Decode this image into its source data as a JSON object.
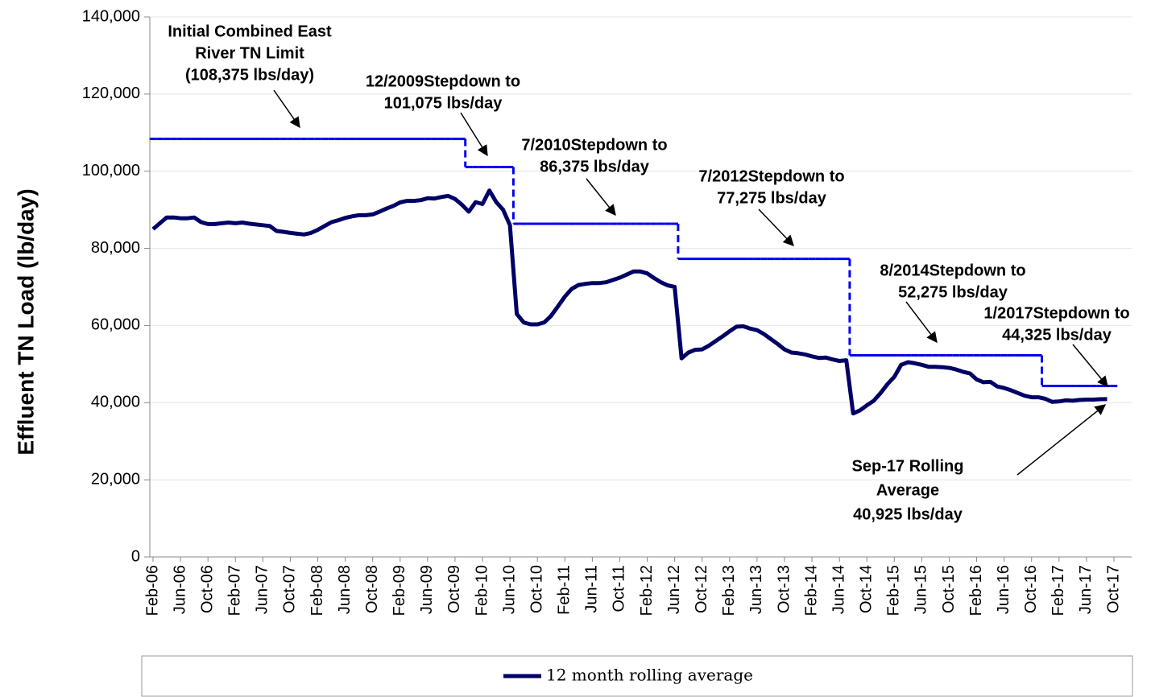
{
  "chart_data": {
    "type": "line",
    "y_label": "Effluent TN Load (lb/day)",
    "categories": [
      "Feb-06",
      null,
      null,
      null,
      "Jun-06",
      null,
      null,
      null,
      "Oct-06",
      null,
      null,
      null,
      "Feb-07",
      null,
      null,
      null,
      "Jun-07",
      null,
      null,
      null,
      "Oct-07",
      null,
      null,
      null,
      "Feb-08",
      null,
      null,
      null,
      "Jun-08",
      null,
      null,
      null,
      "Oct-08",
      null,
      null,
      null,
      "Feb-09",
      null,
      null,
      null,
      "Jun-09",
      null,
      null,
      null,
      "Oct-09",
      null,
      null,
      null,
      "Feb-10",
      null,
      null,
      null,
      "Jun-10",
      null,
      null,
      null,
      "Oct-10",
      null,
      null,
      null,
      "Feb-11",
      null,
      null,
      null,
      "Jun-11",
      null,
      null,
      null,
      "Oct-11",
      null,
      null,
      null,
      "Feb-12",
      null,
      null,
      null,
      "Jun-12",
      null,
      null,
      null,
      "Oct-12",
      null,
      null,
      null,
      "Feb-13",
      null,
      null,
      null,
      "Jun-13",
      null,
      null,
      null,
      "Oct-13",
      null,
      null,
      null,
      "Feb-14",
      null,
      null,
      null,
      "Jun-14",
      null,
      null,
      null,
      "Oct-14",
      null,
      null,
      null,
      "Feb-15",
      null,
      null,
      null,
      "Jun-15",
      null,
      null,
      null,
      "Oct-15",
      null,
      null,
      null,
      "Feb-16",
      null,
      null,
      null,
      "Jun-16",
      null,
      null,
      null,
      "Oct-16",
      null,
      null,
      null,
      "Feb-17",
      null,
      null,
      null,
      "Jun-17",
      null,
      null,
      null,
      "Oct-17"
    ],
    "series": [
      {
        "name": "12 month rolling average",
        "color": "#000066",
        "values": [
          85000,
          86500,
          88000,
          88000,
          87800,
          87800,
          88000,
          86800,
          86300,
          86300,
          86500,
          86700,
          86500,
          86700,
          86400,
          86200,
          86000,
          85800,
          84500,
          84300,
          84000,
          83800,
          83600,
          84000,
          84800,
          85800,
          86800,
          87300,
          87900,
          88300,
          88600,
          88600,
          88800,
          89500,
          90300,
          91000,
          91900,
          92300,
          92300,
          92500,
          93000,
          92900,
          93300,
          93600,
          92800,
          91300,
          89500,
          92000,
          91500,
          95000,
          92000,
          90000,
          86000,
          63000,
          60800,
          60300,
          60300,
          60800,
          62500,
          65000,
          67500,
          69500,
          70500,
          70800,
          71000,
          71000,
          71200,
          71800,
          72400,
          73200,
          74000,
          74000,
          73500,
          72300,
          71200,
          70400,
          70000,
          51500,
          53000,
          53700,
          53800,
          54800,
          56000,
          57200,
          58500,
          59700,
          59800,
          59200,
          58800,
          57800,
          56500,
          55200,
          53800,
          53000,
          52800,
          52500,
          52000,
          51600,
          51700,
          51200,
          50800,
          51000,
          37200,
          38000,
          39300,
          40500,
          42500,
          44800,
          46700,
          49800,
          50500,
          50200,
          49800,
          49300,
          49300,
          49200,
          49000,
          48600,
          48000,
          47600,
          46000,
          45300,
          45400,
          44200,
          43800,
          43200,
          42500,
          41800,
          41400,
          41400,
          41000,
          40200,
          40300,
          40600,
          40500,
          40700,
          40800,
          40800,
          40900,
          40925,
          null
        ]
      },
      {
        "color": "#0000ee",
        "style": "dashed-step",
        "values": [
          108375,
          108375,
          108375,
          108375,
          108375,
          108375,
          108375,
          108375,
          108375,
          108375,
          108375,
          108375,
          108375,
          108375,
          108375,
          108375,
          108375,
          108375,
          108375,
          108375,
          108375,
          108375,
          108375,
          108375,
          108375,
          108375,
          108375,
          108375,
          108375,
          108375,
          108375,
          108375,
          108375,
          108375,
          108375,
          108375,
          108375,
          108375,
          108375,
          108375,
          108375,
          108375,
          108375,
          108375,
          108375,
          108375,
          101075,
          101075,
          101075,
          101075,
          101075,
          101075,
          101075,
          86375,
          86375,
          86375,
          86375,
          86375,
          86375,
          86375,
          86375,
          86375,
          86375,
          86375,
          86375,
          86375,
          86375,
          86375,
          86375,
          86375,
          86375,
          86375,
          86375,
          86375,
          86375,
          86375,
          86375,
          77275,
          77275,
          77275,
          77275,
          77275,
          77275,
          77275,
          77275,
          77275,
          77275,
          77275,
          77275,
          77275,
          77275,
          77275,
          77275,
          77275,
          77275,
          77275,
          77275,
          77275,
          77275,
          77275,
          77275,
          77275,
          52275,
          52275,
          52275,
          52275,
          52275,
          52275,
          52275,
          52275,
          52275,
          52275,
          52275,
          52275,
          52275,
          52275,
          52275,
          52275,
          52275,
          52275,
          52275,
          52275,
          52275,
          52275,
          52275,
          52275,
          52275,
          52275,
          52275,
          52275,
          44325,
          44325,
          44325,
          44325,
          44325,
          44325,
          44325,
          44325,
          44325,
          44325,
          44325
        ]
      }
    ],
    "ylim": [
      0,
      140000
    ],
    "yticks": [
      0,
      {
        "value": 20000,
        "label": "20,000"
      },
      {
        "value": 40000,
        "label": "40,000"
      },
      {
        "value": 60000,
        "label": "60,000"
      },
      {
        "value": 80000,
        "label": "80,000"
      },
      {
        "value": 100000,
        "label": "100,000"
      },
      {
        "value": 120000,
        "label": "120,000"
      },
      {
        "value": 140000,
        "label": "140,000"
      }
    ],
    "grid": true,
    "legend": "bottom",
    "annotations": [
      {
        "text": [
          "Initial Combined East",
          "River TN Limit",
          "(108,375 lbs/day)"
        ]
      },
      {
        "text": [
          "12/2009Stepdown to",
          "101,075 lbs/day"
        ]
      },
      {
        "text": [
          "7/2010Stepdown to",
          "86,375 lbs/day"
        ]
      },
      {
        "text": [
          "7/2012Stepdown to",
          "77,275 lbs/day"
        ]
      },
      {
        "text": [
          "8/2014Stepdown to",
          "52,275 lbs/day"
        ]
      },
      {
        "text": [
          "1/2017Stepdown to",
          "44,325 lbs/day"
        ]
      },
      {
        "text": [
          "Sep-17 Rolling",
          "Average",
          "40,925 lbs/day"
        ]
      }
    ]
  }
}
